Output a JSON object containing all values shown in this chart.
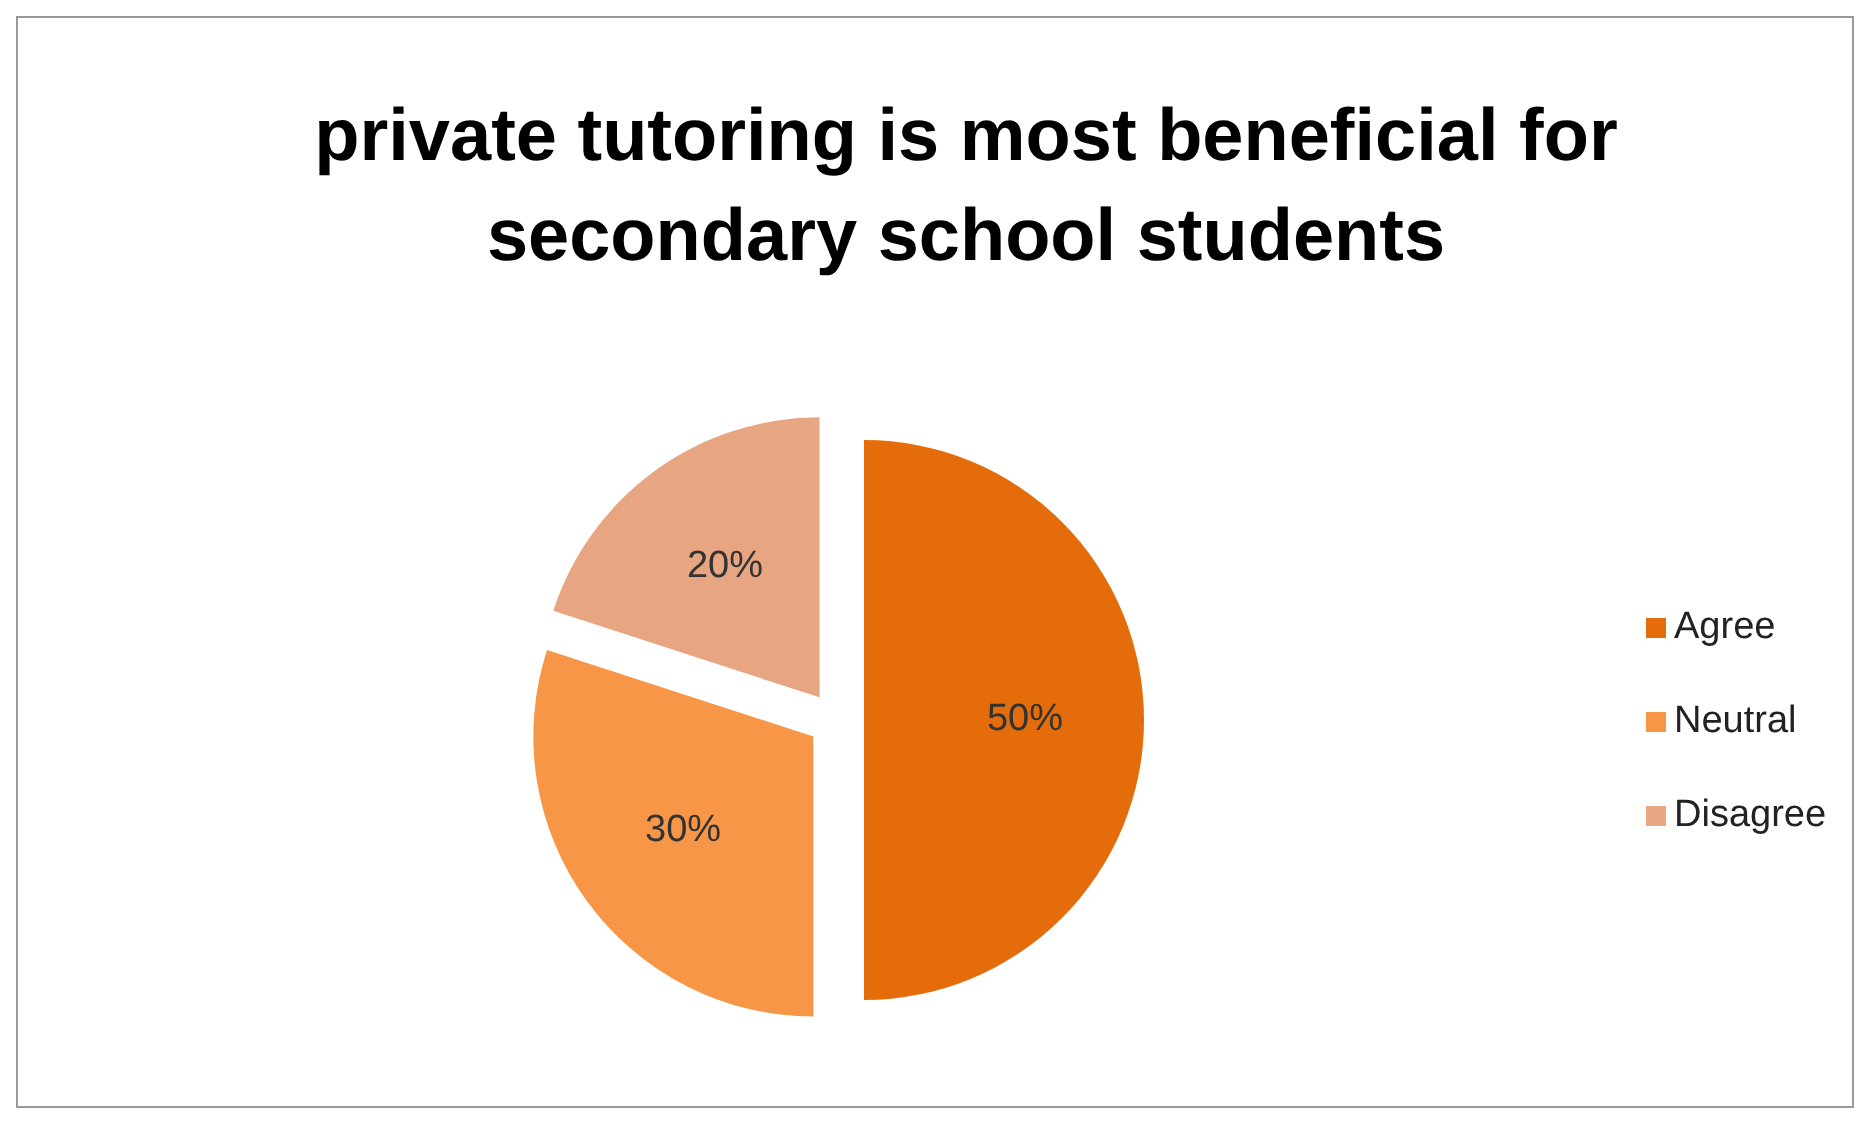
{
  "chart_data": {
    "type": "pie",
    "title": "private tutoring is most beneficial for secondary school students",
    "categories": [
      "Agree",
      "Neutral",
      "Disagree"
    ],
    "values": [
      50,
      30,
      20
    ],
    "value_labels": [
      "50%",
      "30%",
      "20%"
    ],
    "colors": [
      "#e46c0a",
      "#f79646",
      "#e8a582"
    ],
    "legend": "right"
  }
}
